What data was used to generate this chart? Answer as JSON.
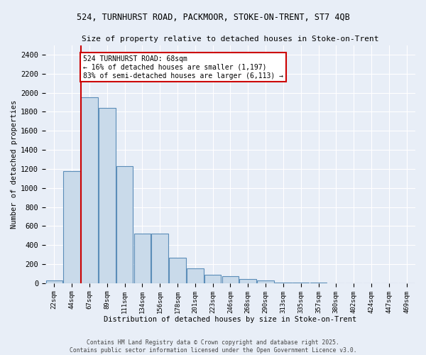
{
  "title1": "524, TURNHURST ROAD, PACKMOOR, STOKE-ON-TRENT, ST7 4QB",
  "title2": "Size of property relative to detached houses in Stoke-on-Trent",
  "xlabel": "Distribution of detached houses by size in Stoke-on-Trent",
  "ylabel": "Number of detached properties",
  "bins": [
    "22sqm",
    "44sqm",
    "67sqm",
    "89sqm",
    "111sqm",
    "134sqm",
    "156sqm",
    "178sqm",
    "201sqm",
    "223sqm",
    "246sqm",
    "268sqm",
    "290sqm",
    "313sqm",
    "335sqm",
    "357sqm",
    "380sqm",
    "402sqm",
    "424sqm",
    "447sqm",
    "469sqm"
  ],
  "values": [
    30,
    1175,
    1950,
    1840,
    1230,
    520,
    520,
    270,
    155,
    90,
    75,
    45,
    30,
    10,
    5,
    3,
    2,
    2,
    2,
    2,
    2
  ],
  "bar_color": "#c9daea",
  "bar_edge_color": "#5b8db8",
  "vline_color": "#cc0000",
  "annotation_text": "524 TURNHURST ROAD: 68sqm\n← 16% of detached houses are smaller (1,197)\n83% of semi-detached houses are larger (6,113) →",
  "annotation_box_color": "white",
  "annotation_box_edge_color": "#cc0000",
  "ylim": [
    0,
    2500
  ],
  "yticks": [
    0,
    200,
    400,
    600,
    800,
    1000,
    1200,
    1400,
    1600,
    1800,
    2000,
    2200,
    2400
  ],
  "background_color": "#e8eef7",
  "grid_color": "white",
  "footnote1": "Contains HM Land Registry data © Crown copyright and database right 2025.",
  "footnote2": "Contains public sector information licensed under the Open Government Licence v3.0."
}
